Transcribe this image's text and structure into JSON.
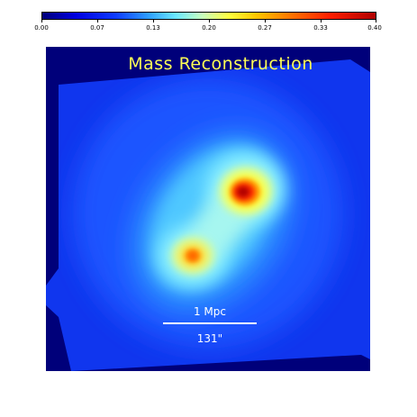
{
  "colorbar": {
    "ticks": [
      "0.00",
      "0.07",
      "0.13",
      "0.20",
      "0.27",
      "0.33",
      "0.40"
    ]
  },
  "map": {
    "title": "Mass Reconstruction",
    "scale_physical": "1 Mpc",
    "scale_angular": "131\""
  },
  "colors": {
    "background": "#00007a",
    "field": "#1040ff",
    "title": "#ffff55",
    "peak": "#b00000"
  }
}
